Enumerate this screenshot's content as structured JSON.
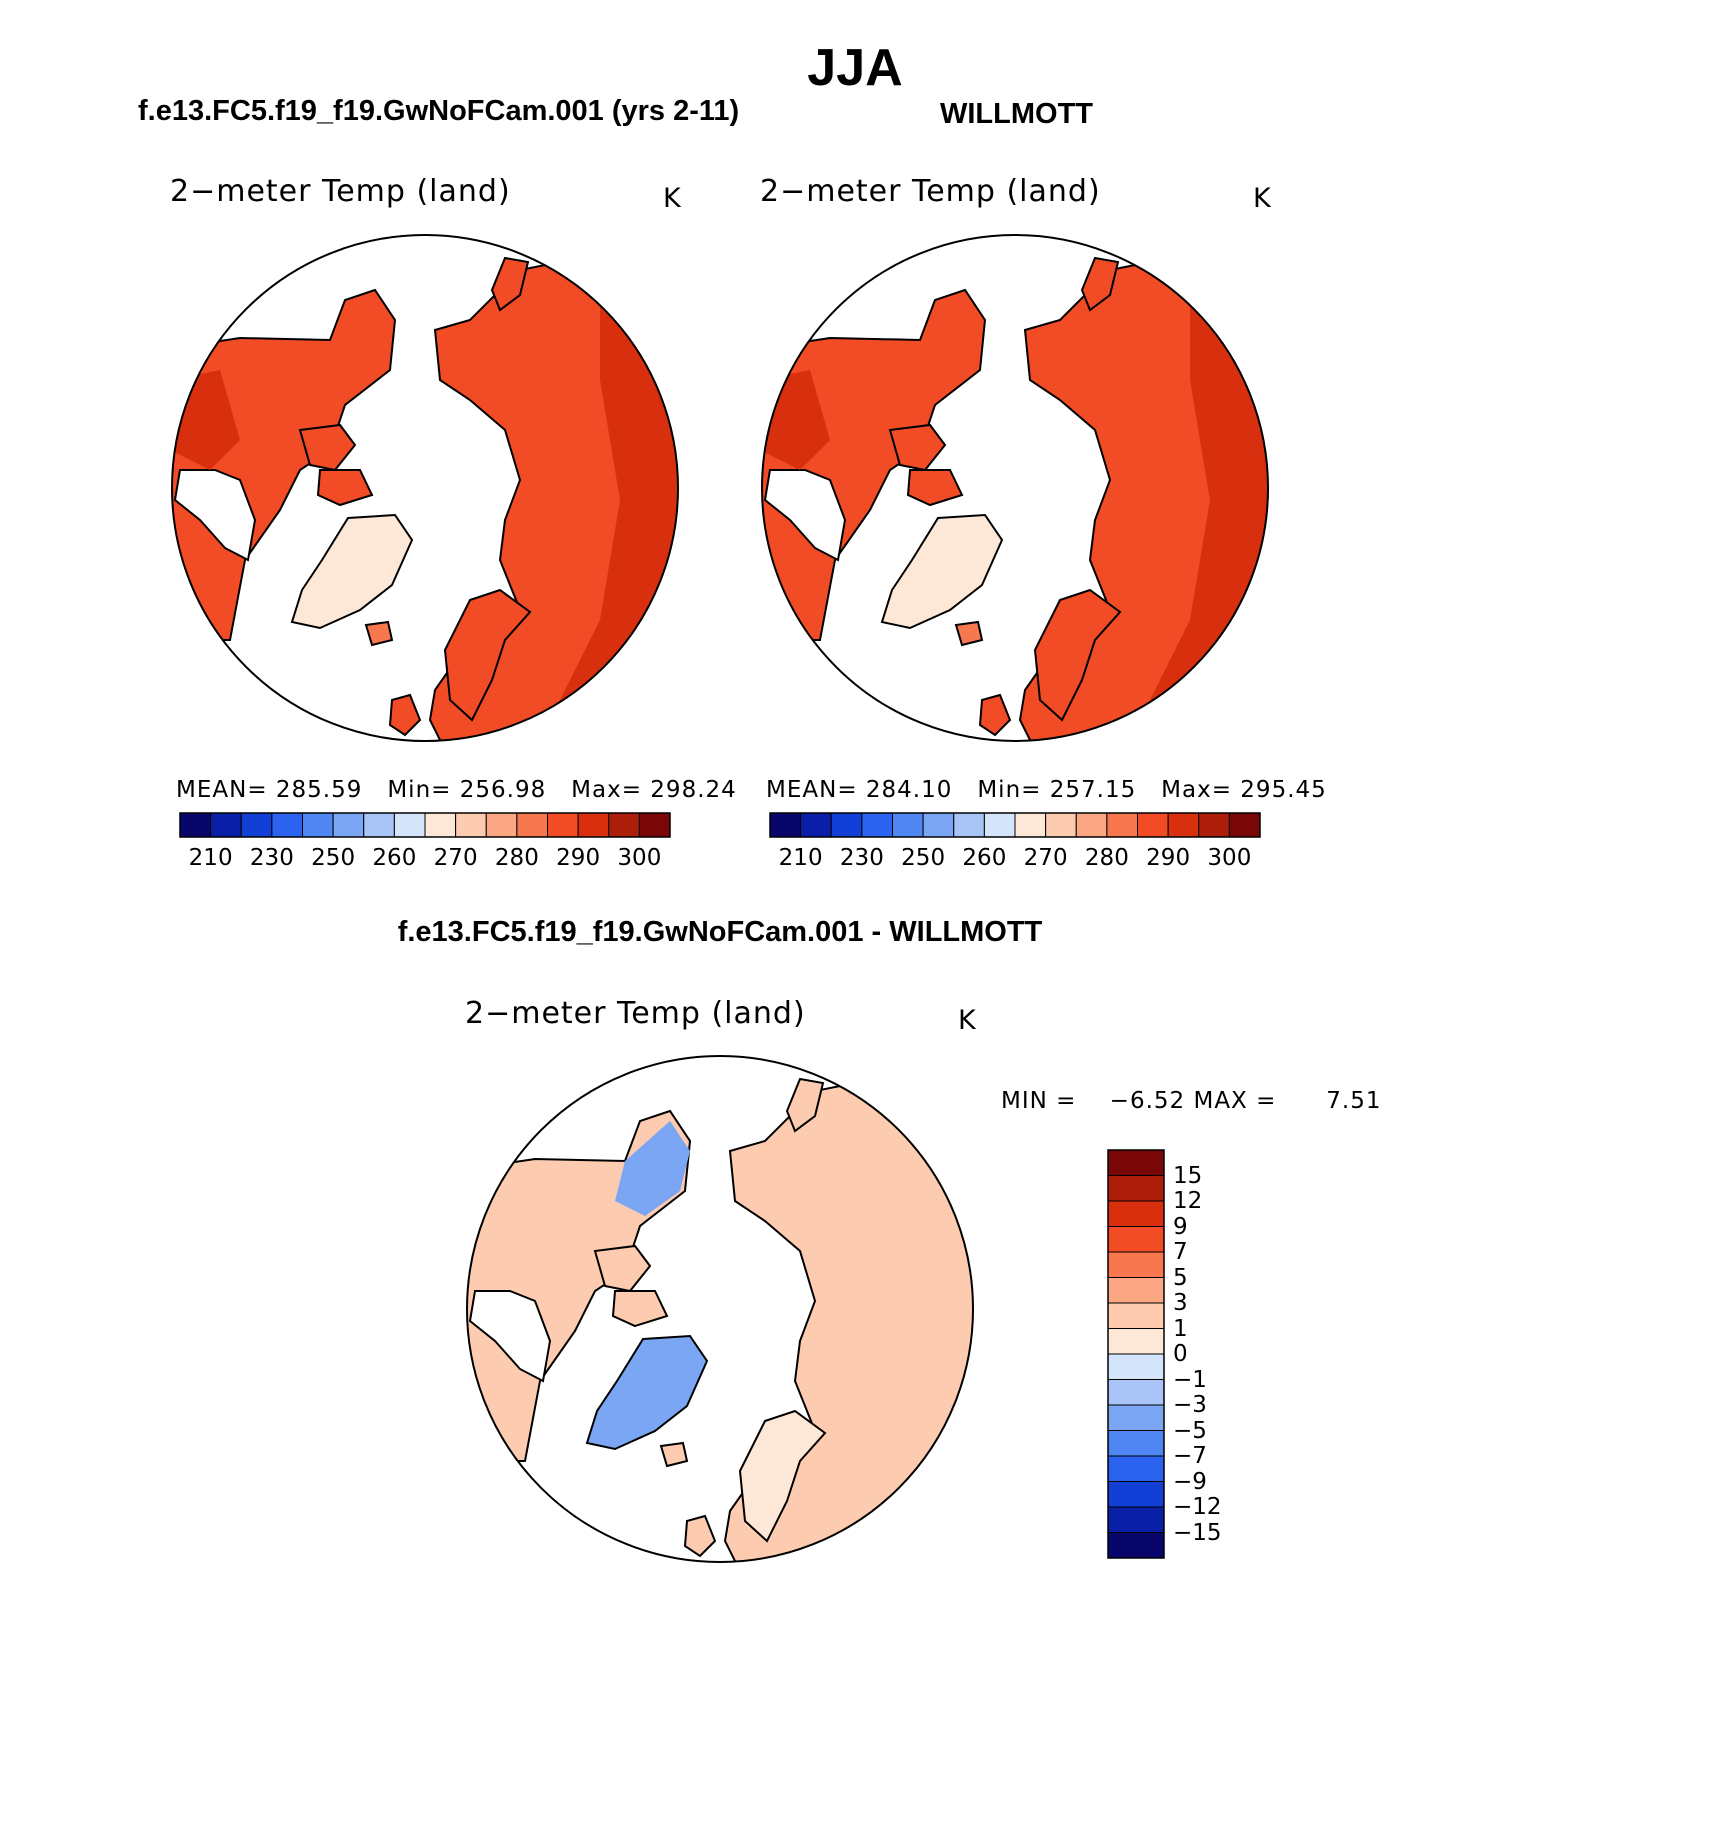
{
  "figure_title": "JJA",
  "panels": [
    {
      "title": "f.e13.FC5.f19_f19.GwNoFCam.001 (yrs 2-11)",
      "variable": "2−meter Temp (land)",
      "units": "K",
      "stats": {
        "mean_label": "MEAN=",
        "mean": "285.59",
        "min_label": "Min=",
        "min": "256.98",
        "max_label": "Max=",
        "max": "298.24"
      },
      "colorbar_ticks": [
        "210",
        "230",
        "250",
        "260",
        "270",
        "280",
        "290",
        "300"
      ]
    },
    {
      "title": "WILLMOTT",
      "variable": "2−meter Temp (land)",
      "units": "K",
      "stats": {
        "mean_label": "MEAN=",
        "mean": "284.10",
        "min_label": "Min=",
        "min": "257.15",
        "max_label": "Max=",
        "max": "295.45"
      },
      "colorbar_ticks": [
        "210",
        "230",
        "250",
        "260",
        "270",
        "280",
        "290",
        "300"
      ]
    },
    {
      "title": "f.e13.FC5.f19_f19.GwNoFCam.001 - WILLMOTT",
      "variable": "2−meter Temp (land)",
      "units": "K",
      "stats": {
        "min_label": "MIN =",
        "min": "−6.52",
        "max_label": "MAX =",
        "max": "7.51"
      },
      "colorbar_ticks": [
        "15",
        "12",
        "9",
        "7",
        "5",
        "3",
        "1",
        "0",
        "−1",
        "−3",
        "−5",
        "−7",
        "−9",
        "−12",
        "−15"
      ]
    }
  ],
  "colors": {
    "abs_scale": [
      "#08066b",
      "#0a1fa8",
      "#1240d6",
      "#2b63f0",
      "#4f86f2",
      "#7aa6f4",
      "#a9c4f6",
      "#d4e4fa",
      "#fde8d8",
      "#fccbb0",
      "#fba784",
      "#f7784f",
      "#f14c25",
      "#d8300f",
      "#ad1e0a",
      "#7a0707"
    ],
    "diff_scale": [
      "#7a0707",
      "#ad1e0a",
      "#d8300f",
      "#f14c25",
      "#f7784f",
      "#fba784",
      "#fccbb0",
      "#fde8d8",
      "#d4e4fa",
      "#a9c4f6",
      "#7aa6f4",
      "#4f86f2",
      "#2b63f0",
      "#1240d6",
      "#0a1fa8",
      "#08066b"
    ]
  },
  "chart_data": [
    {
      "type": "heatmap",
      "title": "f.e13.FC5.f19_f19.GwNoFCam.001 (yrs 2-11)",
      "variable": "2-meter Temp (land)",
      "units": "K",
      "projection": "north polar stereographic",
      "mean": 285.59,
      "min": 256.98,
      "max": 298.24,
      "contour_levels": [
        210,
        220,
        230,
        240,
        250,
        255,
        260,
        265,
        270,
        275,
        280,
        285,
        290,
        295,
        300
      ]
    },
    {
      "type": "heatmap",
      "title": "WILLMOTT",
      "variable": "2-meter Temp (land)",
      "units": "K",
      "projection": "north polar stereographic",
      "mean": 284.1,
      "min": 257.15,
      "max": 295.45,
      "contour_levels": [
        210,
        220,
        230,
        240,
        250,
        255,
        260,
        265,
        270,
        275,
        280,
        285,
        290,
        295,
        300
      ]
    },
    {
      "type": "heatmap",
      "title": "f.e13.FC5.f19_f19.GwNoFCam.001 - WILLMOTT",
      "variable": "2-meter Temp (land)",
      "units": "K",
      "projection": "north polar stereographic",
      "min": -6.52,
      "max": 7.51,
      "contour_levels": [
        -15,
        -12,
        -9,
        -7,
        -5,
        -3,
        -1,
        0,
        1,
        3,
        5,
        7,
        9,
        12,
        15
      ]
    }
  ]
}
